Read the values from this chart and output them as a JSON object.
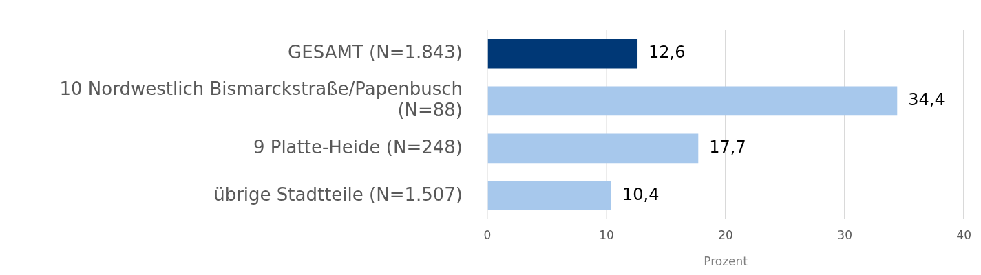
{
  "chart_data": {
    "type": "bar",
    "orientation": "horizontal",
    "categories": [
      "GESAMT (N=1.843)",
      "10 Nordwestlich Bismarckstraße/Papenbusch (N=88)",
      "9 Platte-Heide (N=248)",
      "übrige Stadtteile (N=1.507)"
    ],
    "values": [
      12.6,
      34.4,
      17.7,
      10.4
    ],
    "colors": [
      "#003876",
      "#a7c8ec",
      "#a7c8ec",
      "#a7c8ec"
    ],
    "value_labels": [
      "12,6",
      "34,4",
      "17,7",
      "10,4"
    ],
    "xlim": [
      0,
      40
    ],
    "xticks": [
      0,
      10,
      20,
      30,
      40
    ],
    "xlabel": "Prozent",
    "grid": "x",
    "legend": false
  }
}
